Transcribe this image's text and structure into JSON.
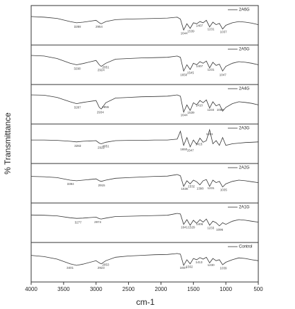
{
  "chart_data": {
    "type": "line",
    "xlabel": "cm-1",
    "ylabel": "% Transmittance",
    "xlim": [
      4000,
      500
    ],
    "xticks": [
      4000,
      3500,
      3000,
      2500,
      2000,
      1500,
      1000,
      500
    ],
    "ylim": [
      0,
      100
    ],
    "x": [
      4000,
      3800,
      3600,
      3400,
      3300,
      3200,
      3000,
      2950,
      2920,
      2850,
      2700,
      2500,
      2300,
      2100,
      1900,
      1750,
      1700,
      1650,
      1600,
      1550,
      1500,
      1450,
      1400,
      1350,
      1300,
      1250,
      1200,
      1150,
      1100,
      1050,
      1000,
      900,
      800,
      700,
      600,
      500
    ],
    "series": [
      {
        "name": "2A6G",
        "color": "#333333",
        "annotations": [
          3288,
          2954,
          1644,
          1539,
          1407,
          1231,
          1037
        ],
        "values": [
          78,
          76,
          72,
          62,
          58,
          60,
          66,
          58,
          55,
          62,
          68,
          70,
          71,
          72,
          73,
          76,
          70,
          35,
          55,
          40,
          58,
          55,
          62,
          58,
          66,
          45,
          60,
          52,
          56,
          38,
          50,
          58,
          62,
          60,
          57,
          52
        ]
      },
      {
        "name": "2A5G",
        "color": "#333333",
        "annotations": [
          3290,
          2924,
          2851,
          1650,
          1545,
          1407,
          1231,
          1047
        ],
        "values": [
          80,
          78,
          70,
          55,
          50,
          54,
          64,
          50,
          45,
          55,
          68,
          70,
          72,
          73,
          74,
          78,
          74,
          30,
          50,
          35,
          55,
          50,
          60,
          55,
          62,
          40,
          58,
          48,
          52,
          30,
          45,
          55,
          60,
          58,
          55,
          50
        ]
      },
      {
        "name": "2A4G",
        "color": "#333333",
        "annotations": [
          3287,
          2934,
          2855,
          1644,
          1539,
          1410,
          1234,
          1088
        ],
        "values": [
          80,
          79,
          72,
          58,
          52,
          56,
          62,
          40,
          35,
          55,
          70,
          72,
          74,
          75,
          76,
          80,
          76,
          25,
          48,
          30,
          55,
          48,
          62,
          55,
          64,
          38,
          58,
          45,
          50,
          28,
          40,
          52,
          58,
          56,
          53,
          48
        ]
      },
      {
        "name": "2A3G",
        "color": "#333333",
        "annotations": [
          3282,
          2922,
          2851,
          1650,
          1547,
          1415,
          1251
        ],
        "values": [
          62,
          62,
          61,
          58,
          56,
          58,
          60,
          52,
          50,
          55,
          60,
          61,
          61,
          62,
          62,
          65,
          90,
          45,
          70,
          40,
          62,
          48,
          68,
          55,
          60,
          95,
          50,
          60,
          45,
          70,
          45,
          50,
          52,
          54,
          55,
          56
        ]
      },
      {
        "name": "2A2G",
        "color": "#333333",
        "annotations": [
          3394,
          2915,
          1636,
          1532,
          1398,
          1231,
          1035
        ],
        "values": [
          72,
          71,
          68,
          60,
          58,
          60,
          64,
          58,
          56,
          60,
          66,
          68,
          70,
          72,
          73,
          78,
          74,
          40,
          58,
          48,
          60,
          55,
          45,
          58,
          62,
          40,
          60,
          52,
          56,
          38,
          48,
          56,
          60,
          58,
          55,
          52
        ]
      },
      {
        "name": "2A1G",
        "color": "#333333",
        "annotations": [
          3277,
          2974,
          1641,
          1529,
          1406,
          1233,
          1096
        ],
        "values": [
          75,
          74,
          72,
          66,
          64,
          65,
          68,
          63,
          62,
          65,
          70,
          71,
          72,
          73,
          74,
          80,
          78,
          45,
          60,
          42,
          58,
          48,
          60,
          52,
          62,
          42,
          55,
          50,
          40,
          50,
          45,
          55,
          60,
          58,
          55,
          52
        ]
      },
      {
        "name": "Control",
        "color": "#333333",
        "annotations": [
          3401,
          2923,
          2853,
          1657,
          1562,
          1413,
          1230,
          1039
        ],
        "values": [
          72,
          68,
          60,
          45,
          40,
          44,
          55,
          48,
          45,
          55,
          66,
          70,
          72,
          74,
          75,
          78,
          76,
          40,
          58,
          45,
          62,
          58,
          65,
          60,
          66,
          48,
          62,
          55,
          58,
          42,
          50,
          58,
          64,
          62,
          58,
          55
        ]
      }
    ]
  }
}
